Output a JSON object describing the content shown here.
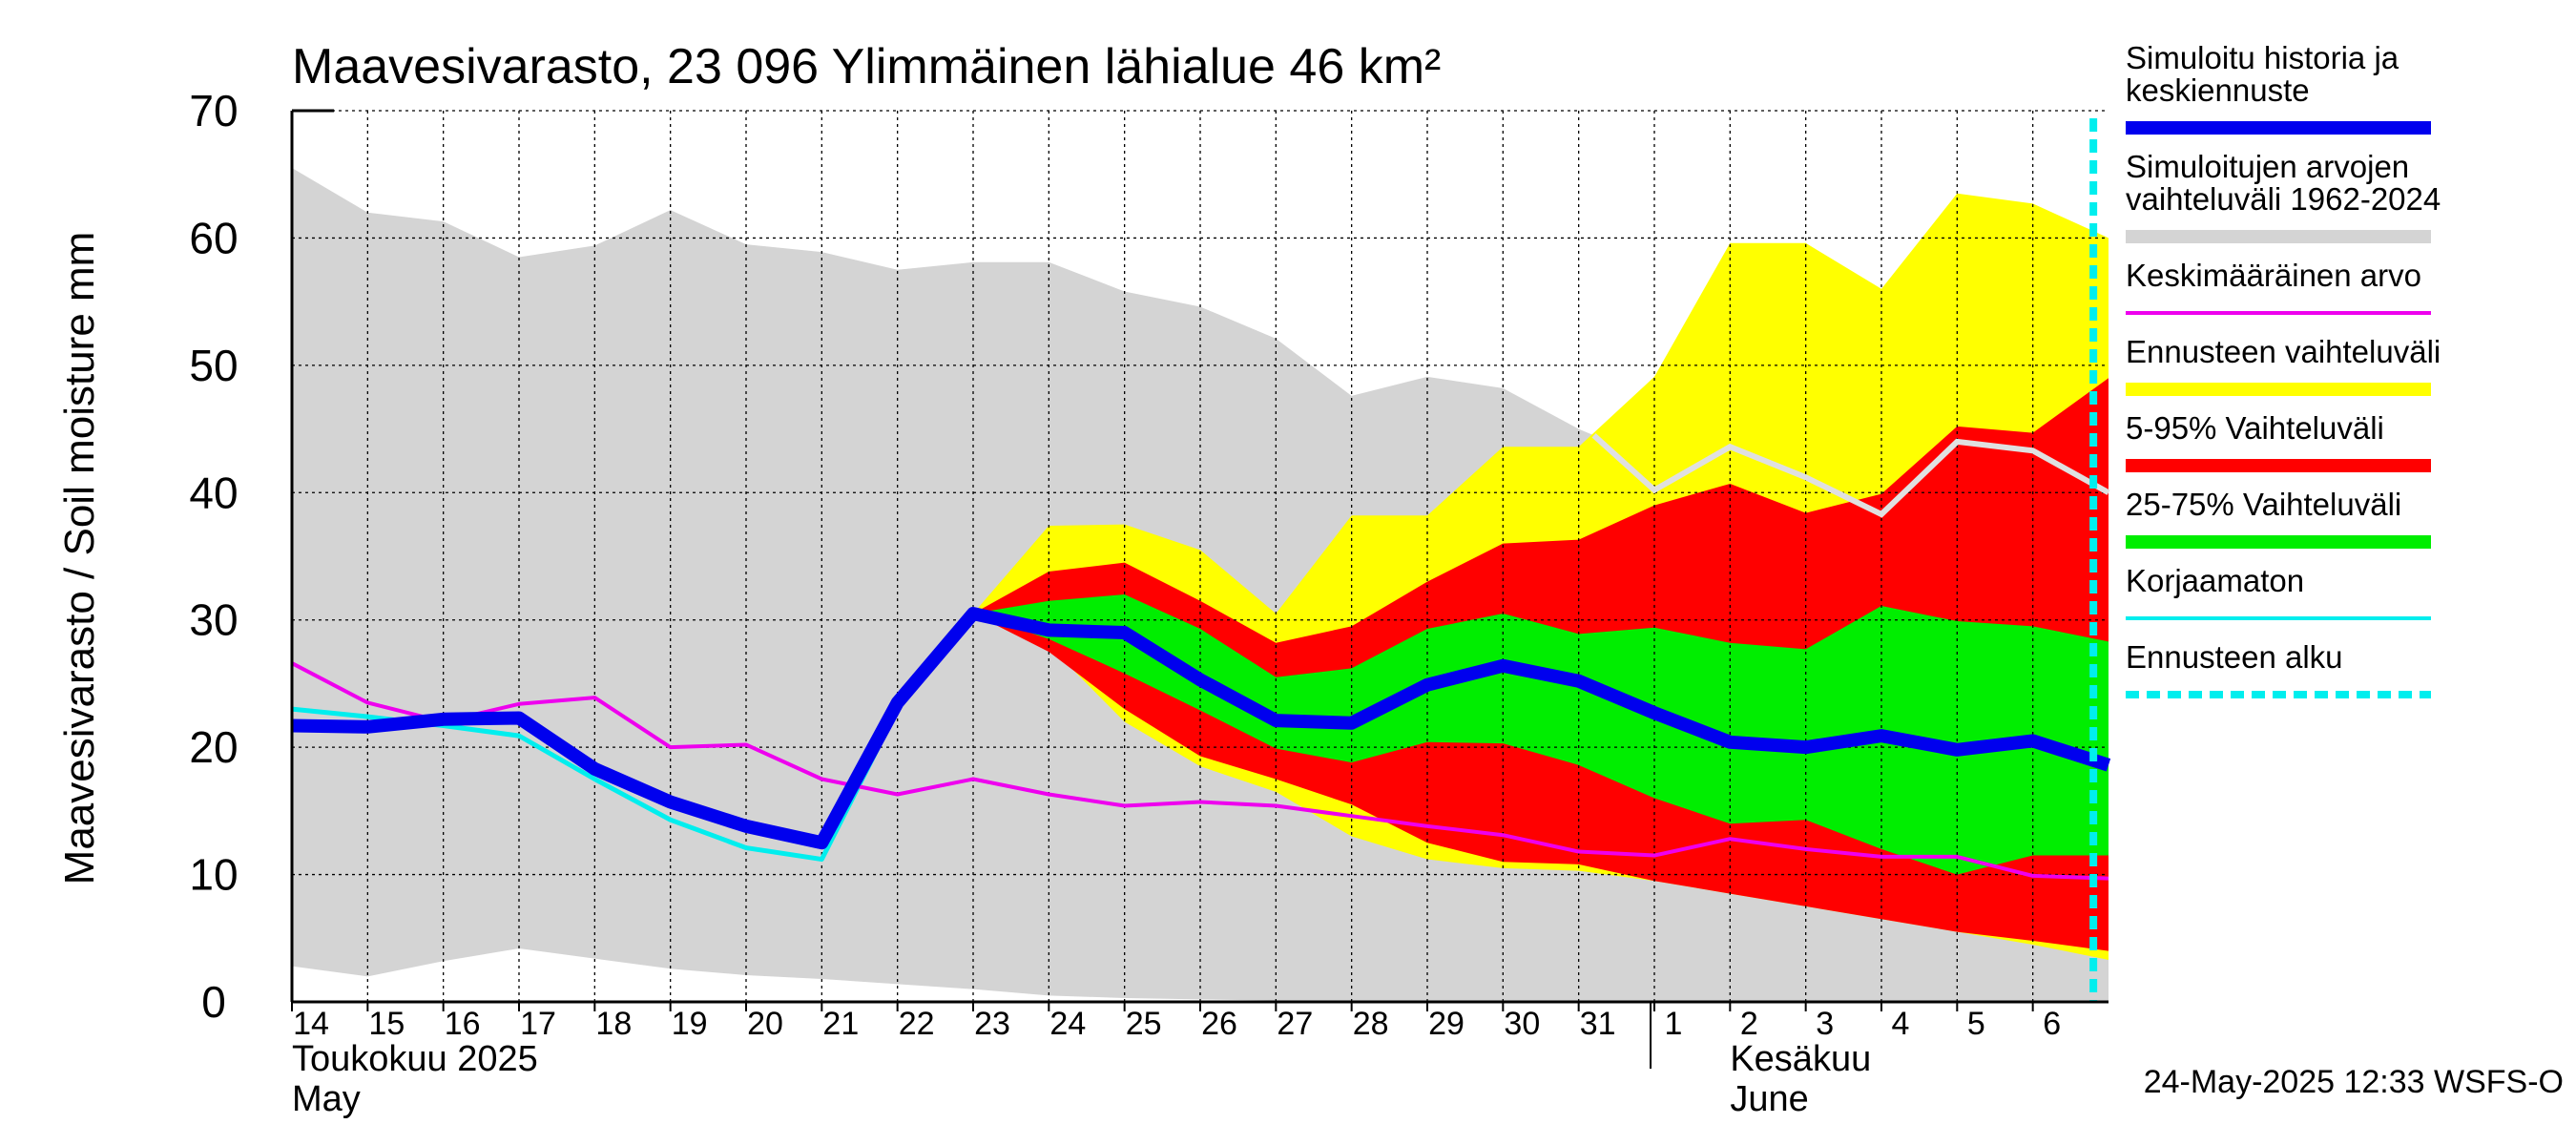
{
  "chart_data": {
    "type": "area",
    "title": "Maavesivarasto, 23 096 Ylimmäinen lähialue 46 km²",
    "ylabel": "Maavesivarasto / Soil moisture   mm",
    "ylim": [
      0,
      70
    ],
    "yticks": [
      0,
      10,
      20,
      30,
      40,
      50,
      60,
      70
    ],
    "xticks": [
      "14",
      "15",
      "16",
      "17",
      "18",
      "19",
      "20",
      "21",
      "22",
      "23",
      "24",
      "25",
      "26",
      "27",
      "28",
      "29",
      "30",
      "31",
      "1",
      "2",
      "3",
      "4",
      "5",
      "6"
    ],
    "month_labels": [
      {
        "fi": "Toukokuu  2025",
        "en": "May"
      },
      {
        "fi": "Kesäkuu",
        "en": "June"
      }
    ],
    "forecast_start_x": 23.8,
    "x": [
      0,
      1,
      2,
      3,
      4,
      5,
      6,
      7,
      8,
      9,
      10,
      11,
      12,
      13,
      14,
      15,
      16,
      17,
      18,
      19,
      20,
      21,
      22,
      23,
      24
    ],
    "hist_range": {
      "upper": [
        65.5,
        62,
        61.3,
        58.5,
        59.4,
        62.2,
        59.5,
        58.9,
        57.5,
        58.1,
        58.1,
        55.8,
        54.6,
        52.1,
        47.6,
        49.1,
        48.2,
        45,
        null,
        null,
        null,
        null,
        null,
        null,
        null
      ],
      "lower": [
        2.8,
        2,
        3.2,
        4.2,
        3.4,
        2.6,
        2.1,
        1.8,
        1.4,
        1,
        0.5,
        0.3,
        0.2,
        0.1,
        0.1,
        0,
        0,
        0,
        0,
        0,
        0,
        0,
        0,
        0,
        0
      ]
    },
    "hist_max_line": {
      "x": [
        17.2,
        18,
        19,
        20,
        21,
        22,
        23,
        24
      ],
      "y": [
        44.5,
        40.2,
        43.6,
        41.2,
        38.3,
        44,
        43.3,
        40
      ]
    },
    "forecast_range": {
      "x": [
        9,
        10,
        11,
        12,
        13,
        14,
        15,
        16,
        17,
        18,
        19,
        20,
        21,
        22,
        23,
        24
      ],
      "upper": [
        30.5,
        37.4,
        37.5,
        35.5,
        30.5,
        38.2,
        38.2,
        43.6,
        43.6,
        49.1,
        59.6,
        59.6,
        56,
        63.5,
        62.7,
        60
      ],
      "lower": [
        30.5,
        28,
        22,
        18.5,
        16.5,
        13,
        11.2,
        10.5,
        10.3,
        9.5,
        8.5,
        7.5,
        6.5,
        5.5,
        4.5,
        3.3
      ]
    },
    "p5_95": {
      "x": [
        9,
        10,
        11,
        12,
        13,
        14,
        15,
        16,
        17,
        18,
        19,
        20,
        21,
        22,
        23,
        24
      ],
      "upper": [
        30.5,
        33.8,
        34.5,
        31.5,
        28.2,
        29.5,
        33,
        36,
        36.3,
        39,
        40.7,
        38.4,
        39.9,
        45.2,
        44.7,
        49
      ],
      "lower": [
        30.5,
        27.5,
        23,
        19.3,
        17.5,
        15.5,
        12.5,
        11,
        10.8,
        9.5,
        8.5,
        7.5,
        6.5,
        5.5,
        4.8,
        4
      ]
    },
    "p25_75": {
      "x": [
        9,
        10,
        11,
        12,
        13,
        14,
        15,
        16,
        17,
        18,
        19,
        20,
        21,
        22,
        23,
        24
      ],
      "upper": [
        30.5,
        31.5,
        32,
        29.3,
        25.5,
        26.2,
        29.3,
        30.5,
        28.9,
        29.4,
        28.2,
        27.7,
        31.1,
        29.9,
        29.5,
        28.3
      ],
      "lower": [
        30.5,
        28.5,
        25.8,
        22.9,
        19.9,
        18.8,
        20.4,
        20.3,
        18.6,
        16,
        14,
        14.3,
        12,
        10,
        11.5,
        11.5
      ]
    },
    "series": [
      {
        "name": "Simuloitu historia ja keskiennuste",
        "color": "#0000ee",
        "x": [
          0,
          1,
          2,
          3,
          4,
          5,
          6,
          7,
          8,
          9,
          10,
          11,
          12,
          13,
          14,
          15,
          16,
          17,
          18,
          19,
          20,
          21,
          22,
          23,
          24
        ],
        "values": [
          21.7,
          21.6,
          22.2,
          22.3,
          18.3,
          15.7,
          13.8,
          12.5,
          23.5,
          30.5,
          29.2,
          29,
          25.3,
          22.1,
          21.9,
          24.9,
          26.4,
          25.2,
          22.7,
          20.4,
          20,
          20.9,
          19.8,
          20.5,
          18.6
        ]
      },
      {
        "name": "Keskimääräinen arvo",
        "color": "#ee00ee",
        "x": [
          0,
          1,
          2,
          3,
          4,
          5,
          6,
          7,
          8,
          9,
          10,
          11,
          12,
          13,
          14,
          15,
          16,
          17,
          18,
          19,
          20,
          21,
          22,
          23,
          24
        ],
        "values": [
          26.6,
          23.5,
          22,
          23.4,
          23.9,
          20,
          20.2,
          17.5,
          16.3,
          17.5,
          16.3,
          15.4,
          15.7,
          15.4,
          14.6,
          13.8,
          13.1,
          11.8,
          11.5,
          12.8,
          12,
          11.4,
          11.4,
          9.9,
          9.7
        ]
      },
      {
        "name": "Korjaamaton",
        "color": "#00eeee",
        "x": [
          0,
          1,
          2,
          3,
          4,
          5,
          6,
          7,
          8,
          9
        ],
        "values": [
          23,
          22.4,
          21.7,
          20.9,
          17.5,
          14.3,
          12.1,
          11.2,
          23,
          30.5
        ]
      }
    ],
    "legend": [
      {
        "label": "Simuloitu historia ja keskiennuste",
        "color": "#0000ee",
        "style": "thick"
      },
      {
        "label": "Simuloitujen arvojen vaihteluväli 1962-2024",
        "color": "#d4d4d4",
        "style": "band"
      },
      {
        "label": "Keskimääräinen arvo",
        "color": "#ee00ee",
        "style": "thin"
      },
      {
        "label": "Ennusteen vaihteluväli",
        "color": "#ffff00",
        "style": "band"
      },
      {
        "label": "5-95% Vaihteluväli",
        "color": "#ff0000",
        "style": "band"
      },
      {
        "label": "25-75% Vaihteluväli",
        "color": "#00ee00",
        "style": "band"
      },
      {
        "label": "Korjaamaton",
        "color": "#00eeee",
        "style": "thin"
      },
      {
        "label": "Ennusteen alku",
        "color": "#00eeee",
        "style": "dashed"
      }
    ],
    "grid": true,
    "legend_position": "right"
  },
  "footer": {
    "timestamp": "24-May-2025 12:33 WSFS-O"
  }
}
